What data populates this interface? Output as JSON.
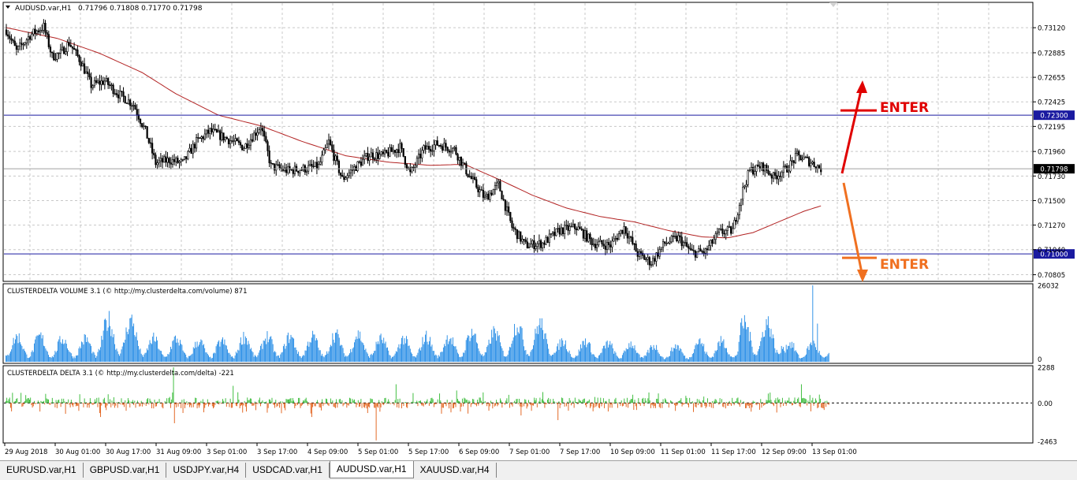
{
  "symbol_label": "AUDUSD.var,H1",
  "ohlc_label": "0.71796 0.71808 0.71770 0.71798",
  "colors": {
    "up": "#008000",
    "down": "#ff0000",
    "volume": "#1e88e5",
    "delta_up": "#2eb82e",
    "delta_down": "#e05a10",
    "ma": "#b22222",
    "level": "#1a1aa0",
    "enter_up": "#e00000",
    "enter_down": "#f07020"
  },
  "tabs": [
    {
      "label": "EURUSD.var,H1",
      "active": false
    },
    {
      "label": "GBPUSD.var,H1",
      "active": false
    },
    {
      "label": "USDJPY.var,H4",
      "active": false
    },
    {
      "label": "USDCAD.var,H1",
      "active": false
    },
    {
      "label": "AUDUSD.var,H1",
      "active": true
    },
    {
      "label": "XAUUSD.var,H4",
      "active": false
    }
  ],
  "chart_data": [
    {
      "type": "candlestick",
      "title": "AUDUSD.var,H1",
      "y_ticks": [
        "0.73120",
        "0.72885",
        "0.72655",
        "0.72425",
        "0.72195",
        "0.71960",
        "0.71730",
        "0.71500",
        "0.71270",
        "0.71040",
        "0.70805"
      ],
      "ylim": [
        0.7075,
        0.7335
      ],
      "x_ticks": [
        "29 Aug 2018",
        "30 Aug 01:00",
        "30 Aug 17:00",
        "31 Aug 09:00",
        "3 Sep 01:00",
        "3 Sep 17:00",
        "4 Sep 09:00",
        "5 Sep 01:00",
        "5 Sep 17:00",
        "6 Sep 09:00",
        "7 Sep 01:00",
        "7 Sep 17:00",
        "10 Sep 09:00",
        "11 Sep 01:00",
        "11 Sep 17:00",
        "12 Sep 09:00",
        "13 Sep 01:00"
      ],
      "grid": true,
      "price_path": [
        {
          "bar": 0,
          "price": 0.731
        },
        {
          "bar": 6,
          "price": 0.729
        },
        {
          "bar": 14,
          "price": 0.7305
        },
        {
          "bar": 22,
          "price": 0.7313
        },
        {
          "bar": 27,
          "price": 0.7285
        },
        {
          "bar": 32,
          "price": 0.7288
        },
        {
          "bar": 37,
          "price": 0.7298
        },
        {
          "bar": 44,
          "price": 0.728
        },
        {
          "bar": 50,
          "price": 0.7258
        },
        {
          "bar": 58,
          "price": 0.7262
        },
        {
          "bar": 66,
          "price": 0.725
        },
        {
          "bar": 75,
          "price": 0.724
        },
        {
          "bar": 82,
          "price": 0.7215
        },
        {
          "bar": 88,
          "price": 0.7185
        },
        {
          "bar": 96,
          "price": 0.7188
        },
        {
          "bar": 104,
          "price": 0.7185
        },
        {
          "bar": 112,
          "price": 0.7205
        },
        {
          "bar": 120,
          "price": 0.7215
        },
        {
          "bar": 130,
          "price": 0.7208
        },
        {
          "bar": 140,
          "price": 0.72
        },
        {
          "bar": 150,
          "price": 0.722
        },
        {
          "bar": 156,
          "price": 0.7182
        },
        {
          "bar": 166,
          "price": 0.7178
        },
        {
          "bar": 176,
          "price": 0.718
        },
        {
          "bar": 184,
          "price": 0.7182
        },
        {
          "bar": 190,
          "price": 0.7205
        },
        {
          "bar": 198,
          "price": 0.717
        },
        {
          "bar": 206,
          "price": 0.7182
        },
        {
          "bar": 214,
          "price": 0.7193
        },
        {
          "bar": 222,
          "price": 0.7192
        },
        {
          "bar": 232,
          "price": 0.72
        },
        {
          "bar": 238,
          "price": 0.7175
        },
        {
          "bar": 246,
          "price": 0.7198
        },
        {
          "bar": 254,
          "price": 0.7203
        },
        {
          "bar": 264,
          "price": 0.7198
        },
        {
          "bar": 272,
          "price": 0.7175
        },
        {
          "bar": 282,
          "price": 0.7152
        },
        {
          "bar": 290,
          "price": 0.7165
        },
        {
          "bar": 298,
          "price": 0.7125
        },
        {
          "bar": 306,
          "price": 0.7108
        },
        {
          "bar": 316,
          "price": 0.711
        },
        {
          "bar": 326,
          "price": 0.7122
        },
        {
          "bar": 336,
          "price": 0.7125
        },
        {
          "bar": 346,
          "price": 0.711
        },
        {
          "bar": 356,
          "price": 0.7108
        },
        {
          "bar": 364,
          "price": 0.7125
        },
        {
          "bar": 372,
          "price": 0.71
        },
        {
          "bar": 380,
          "price": 0.7092
        },
        {
          "bar": 388,
          "price": 0.711
        },
        {
          "bar": 396,
          "price": 0.7115
        },
        {
          "bar": 404,
          "price": 0.7101
        },
        {
          "bar": 412,
          "price": 0.7102
        },
        {
          "bar": 420,
          "price": 0.712
        },
        {
          "bar": 428,
          "price": 0.7122
        },
        {
          "bar": 434,
          "price": 0.716
        },
        {
          "bar": 438,
          "price": 0.7178
        },
        {
          "bar": 446,
          "price": 0.7182
        },
        {
          "bar": 452,
          "price": 0.7172
        },
        {
          "bar": 460,
          "price": 0.718
        },
        {
          "bar": 466,
          "price": 0.7192
        },
        {
          "bar": 474,
          "price": 0.7186
        },
        {
          "bar": 480,
          "price": 0.718
        }
      ],
      "series": [
        {
          "name": "",
          "kind": "moving-average",
          "path": [
            {
              "bar": 0,
              "price": 0.7312
            },
            {
              "bar": 30,
              "price": 0.7302
            },
            {
              "bar": 55,
              "price": 0.7288
            },
            {
              "bar": 80,
              "price": 0.727
            },
            {
              "bar": 100,
              "price": 0.725
            },
            {
              "bar": 125,
              "price": 0.723
            },
            {
              "bar": 150,
              "price": 0.722
            },
            {
              "bar": 175,
              "price": 0.7205
            },
            {
              "bar": 200,
              "price": 0.7192
            },
            {
              "bar": 225,
              "price": 0.7186
            },
            {
              "bar": 250,
              "price": 0.7183
            },
            {
              "bar": 270,
              "price": 0.7184
            },
            {
              "bar": 290,
              "price": 0.717
            },
            {
              "bar": 310,
              "price": 0.7155
            },
            {
              "bar": 330,
              "price": 0.7143
            },
            {
              "bar": 350,
              "price": 0.7135
            },
            {
              "bar": 370,
              "price": 0.713
            },
            {
              "bar": 390,
              "price": 0.7122
            },
            {
              "bar": 410,
              "price": 0.7116
            },
            {
              "bar": 425,
              "price": 0.7115
            },
            {
              "bar": 440,
              "price": 0.712
            },
            {
              "bar": 455,
              "price": 0.713
            },
            {
              "bar": 470,
              "price": 0.714
            },
            {
              "bar": 480,
              "price": 0.7145
            }
          ]
        }
      ],
      "levels": [
        {
          "price": 0.723,
          "label": "0.72300"
        },
        {
          "price": 0.71,
          "label": "0.71000"
        }
      ],
      "current_price": {
        "price": 0.71798,
        "label": "0.71798"
      },
      "annotations": [
        {
          "text": "ENTER",
          "level_price": 0.723,
          "direction": "up"
        },
        {
          "text": "ENTER",
          "level_price": 0.71,
          "direction": "down"
        }
      ]
    },
    {
      "type": "bar",
      "title": "CLUSTERDELTA VOLUME 3.1 (© http://my.clusterdelta.com/volume) 871",
      "y_ticks": [
        "26032",
        "0"
      ],
      "ylim": [
        0,
        26032
      ],
      "session_peaks": [
        11000,
        10000,
        18000,
        10000,
        9000,
        11000,
        11000,
        12000,
        10000,
        11000,
        13000,
        16500,
        9000,
        8000,
        7000,
        9000,
        17000,
        8000
      ]
    },
    {
      "type": "bar",
      "title": "CLUSTERDELTA DELTA 3.1 (© http://my.clusterdelta.com/delta) -221",
      "y_ticks": [
        "2288",
        "0.00",
        "-2463"
      ],
      "ylim": [
        -2463,
        2288
      ],
      "notable_values": [
        {
          "bar": 16,
          "value": 650
        },
        {
          "bar": 100,
          "value": -900
        },
        {
          "bar": 177,
          "value": 2288
        },
        {
          "bar": 178,
          "value": -1300
        },
        {
          "bar": 240,
          "value": 1100
        },
        {
          "bar": 323,
          "value": -900
        },
        {
          "bar": 391,
          "value": -2400
        },
        {
          "bar": 412,
          "value": 1200
        },
        {
          "bar": 476,
          "value": 800
        },
        {
          "bar": 544,
          "value": -800
        },
        {
          "bar": 567,
          "value": 700
        },
        {
          "bar": 583,
          "value": -1100
        },
        {
          "bar": 840,
          "value": 1200
        },
        {
          "bar": 866,
          "value": -250
        }
      ]
    }
  ]
}
